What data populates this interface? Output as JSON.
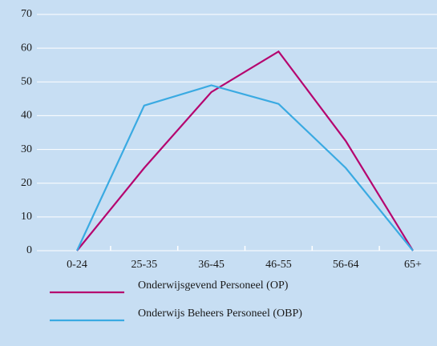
{
  "chart_data": {
    "type": "line",
    "categories": [
      "0-24",
      "25-35",
      "36-45",
      "46-55",
      "56-64",
      "65+"
    ],
    "series": [
      {
        "name": "Onderwijsgevend Personeel (OP)",
        "color": "#b5056f",
        "values": [
          0,
          24.5,
          47,
          59,
          32.5,
          0
        ]
      },
      {
        "name": "Onderwijs Beheers Personeel (OBP)",
        "color": "#3aaae2",
        "values": [
          0,
          43,
          49,
          43.5,
          24.5,
          0
        ]
      }
    ],
    "ylim": [
      0,
      70
    ],
    "yticks": [
      0,
      10,
      20,
      30,
      40,
      50,
      60,
      70
    ],
    "grid": true
  }
}
